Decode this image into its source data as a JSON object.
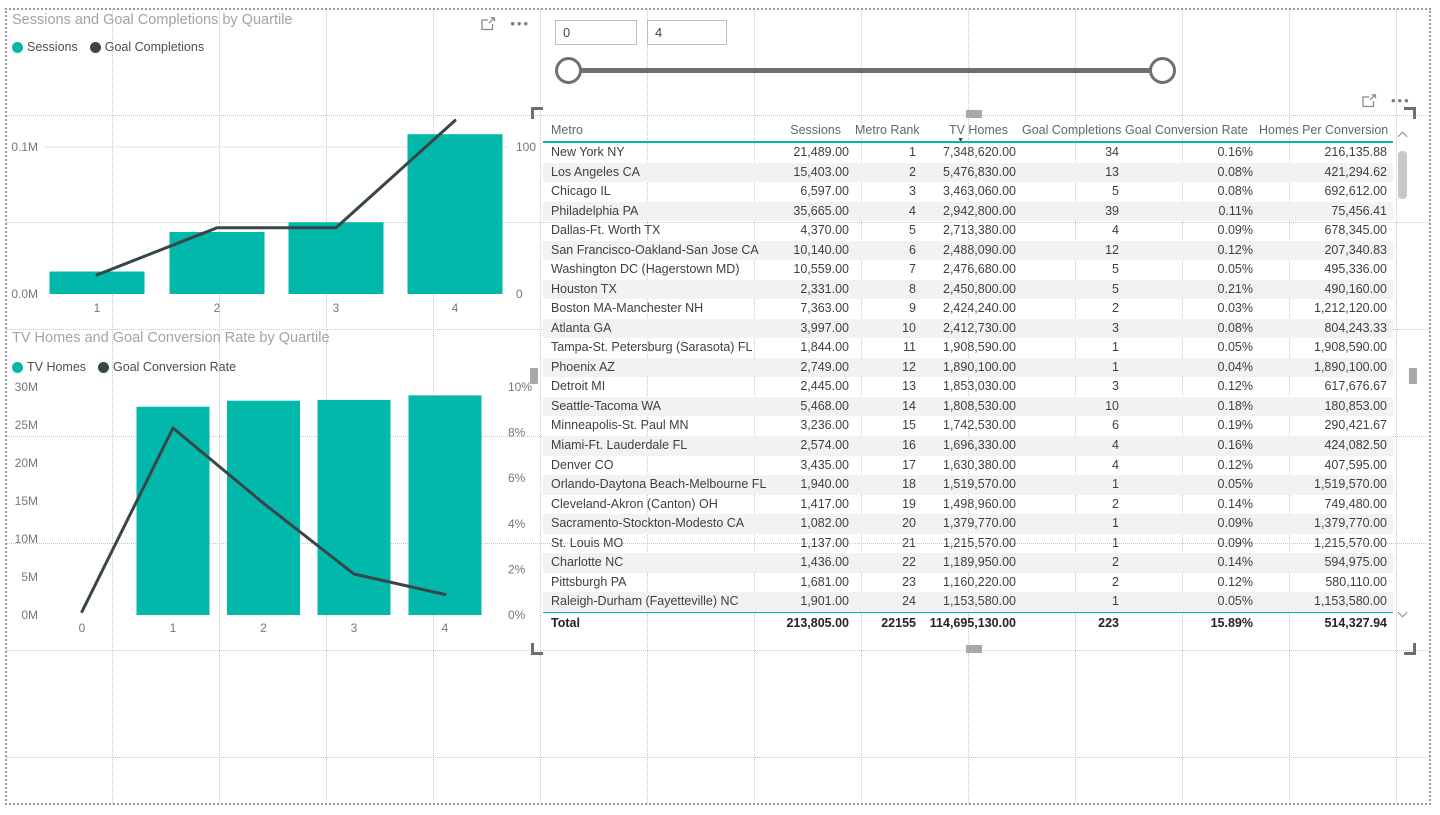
{
  "colors": {
    "teal": "#01B8AA",
    "dark": "#374649"
  },
  "icons": {
    "ellipsis": "•••"
  },
  "charts": [
    {
      "title": "Sessions and Goal Completions by Quartile",
      "legend": [
        {
          "label": "Sessions",
          "color": "#01B8AA"
        },
        {
          "label": "Goal Completions",
          "color": "#374649"
        }
      ],
      "chart_data": {
        "type": "combo-bar-line",
        "categories": [
          "1",
          "2",
          "3",
          "4"
        ],
        "series": [
          {
            "name": "Sessions",
            "type": "bar",
            "axis": "left",
            "values": [
              15300,
              42200,
              48800,
              108700
            ]
          },
          {
            "name": "Goal Completions",
            "type": "line",
            "axis": "right",
            "values": [
              13,
              45,
              45,
              118
            ]
          }
        ],
        "left_axis": {
          "ticks": [
            {
              "label": "0.0M",
              "value": 0
            },
            {
              "label": "0.1M",
              "value": 100000
            }
          ]
        },
        "right_axis": {
          "ticks": [
            {
              "label": "0",
              "value": 0
            },
            {
              "label": "100",
              "value": 100
            }
          ]
        },
        "gridline_values_left": [
          100000
        ]
      }
    },
    {
      "title": "TV Homes and Goal Conversion Rate by Quartile",
      "legend": [
        {
          "label": "TV Homes",
          "color": "#01B8AA"
        },
        {
          "label": "Goal Conversion Rate",
          "color": "#374649"
        }
      ],
      "chart_data": {
        "type": "combo-bar-line",
        "categories": [
          "0",
          "1",
          "2",
          "3",
          "4"
        ],
        "series": [
          {
            "name": "TV Homes",
            "type": "bar",
            "axis": "left",
            "values": [
              0,
              27400000,
              28200000,
              28300000,
              28900000
            ]
          },
          {
            "name": "Goal Conversion Rate",
            "type": "line",
            "axis": "right",
            "values": [
              0.15,
              8.2,
              4.9,
              1.8,
              0.9
            ]
          }
        ],
        "left_axis": {
          "ticks": [
            {
              "label": "0M",
              "value": 0
            },
            {
              "label": "5M",
              "value": 5000000
            },
            {
              "label": "10M",
              "value": 10000000
            },
            {
              "label": "15M",
              "value": 15000000
            },
            {
              "label": "20M",
              "value": 20000000
            },
            {
              "label": "25M",
              "value": 25000000
            },
            {
              "label": "30M",
              "value": 30000000
            }
          ]
        },
        "right_axis": {
          "ticks": [
            {
              "label": "0%",
              "value": 0
            },
            {
              "label": "2%",
              "value": 2
            },
            {
              "label": "4%",
              "value": 4
            },
            {
              "label": "6%",
              "value": 6
            },
            {
              "label": "8%",
              "value": 8
            },
            {
              "label": "10%",
              "value": 10
            }
          ]
        },
        "gridline_values_left": []
      }
    }
  ],
  "slider": {
    "min_value": "0",
    "max_value": "4"
  },
  "table": {
    "columns": [
      {
        "label": "Metro",
        "align": "left",
        "sorted": false
      },
      {
        "label": "Sessions",
        "align": "right",
        "sorted": false
      },
      {
        "label": "Metro Rank",
        "align": "right",
        "sorted": false
      },
      {
        "label": "TV Homes",
        "align": "right",
        "sorted": true
      },
      {
        "label": "Goal Completions",
        "align": "right",
        "sorted": false
      },
      {
        "label": "Goal Conversion Rate",
        "align": "right",
        "sorted": false
      },
      {
        "label": "Homes Per Conversion",
        "align": "right",
        "sorted": false
      }
    ],
    "rows": [
      [
        "New York NY",
        "21,489.00",
        "1",
        "7,348,620.00",
        "34",
        "0.16%",
        "216,135.88"
      ],
      [
        "Los Angeles CA",
        "15,403.00",
        "2",
        "5,476,830.00",
        "13",
        "0.08%",
        "421,294.62"
      ],
      [
        "Chicago IL",
        "6,597.00",
        "3",
        "3,463,060.00",
        "5",
        "0.08%",
        "692,612.00"
      ],
      [
        "Philadelphia PA",
        "35,665.00",
        "4",
        "2,942,800.00",
        "39",
        "0.11%",
        "75,456.41"
      ],
      [
        "Dallas-Ft. Worth TX",
        "4,370.00",
        "5",
        "2,713,380.00",
        "4",
        "0.09%",
        "678,345.00"
      ],
      [
        "San Francisco-Oakland-San Jose CA",
        "10,140.00",
        "6",
        "2,488,090.00",
        "12",
        "0.12%",
        "207,340.83"
      ],
      [
        "Washington DC (Hagerstown MD)",
        "10,559.00",
        "7",
        "2,476,680.00",
        "5",
        "0.05%",
        "495,336.00"
      ],
      [
        "Houston TX",
        "2,331.00",
        "8",
        "2,450,800.00",
        "5",
        "0.21%",
        "490,160.00"
      ],
      [
        "Boston MA-Manchester NH",
        "7,363.00",
        "9",
        "2,424,240.00",
        "2",
        "0.03%",
        "1,212,120.00"
      ],
      [
        "Atlanta GA",
        "3,997.00",
        "10",
        "2,412,730.00",
        "3",
        "0.08%",
        "804,243.33"
      ],
      [
        "Tampa-St. Petersburg (Sarasota) FL",
        "1,844.00",
        "11",
        "1,908,590.00",
        "1",
        "0.05%",
        "1,908,590.00"
      ],
      [
        "Phoenix AZ",
        "2,749.00",
        "12",
        "1,890,100.00",
        "1",
        "0.04%",
        "1,890,100.00"
      ],
      [
        "Detroit MI",
        "2,445.00",
        "13",
        "1,853,030.00",
        "3",
        "0.12%",
        "617,676.67"
      ],
      [
        "Seattle-Tacoma WA",
        "5,468.00",
        "14",
        "1,808,530.00",
        "10",
        "0.18%",
        "180,853.00"
      ],
      [
        "Minneapolis-St. Paul MN",
        "3,236.00",
        "15",
        "1,742,530.00",
        "6",
        "0.19%",
        "290,421.67"
      ],
      [
        "Miami-Ft. Lauderdale FL",
        "2,574.00",
        "16",
        "1,696,330.00",
        "4",
        "0.16%",
        "424,082.50"
      ],
      [
        "Denver CO",
        "3,435.00",
        "17",
        "1,630,380.00",
        "4",
        "0.12%",
        "407,595.00"
      ],
      [
        "Orlando-Daytona Beach-Melbourne FL",
        "1,940.00",
        "18",
        "1,519,570.00",
        "1",
        "0.05%",
        "1,519,570.00"
      ],
      [
        "Cleveland-Akron (Canton) OH",
        "1,417.00",
        "19",
        "1,498,960.00",
        "2",
        "0.14%",
        "749,480.00"
      ],
      [
        "Sacramento-Stockton-Modesto CA",
        "1,082.00",
        "20",
        "1,379,770.00",
        "1",
        "0.09%",
        "1,379,770.00"
      ],
      [
        "St. Louis MO",
        "1,137.00",
        "21",
        "1,215,570.00",
        "1",
        "0.09%",
        "1,215,570.00"
      ],
      [
        "Charlotte NC",
        "1,436.00",
        "22",
        "1,189,950.00",
        "2",
        "0.14%",
        "594,975.00"
      ],
      [
        "Pittsburgh PA",
        "1,681.00",
        "23",
        "1,160,220.00",
        "2",
        "0.12%",
        "580,110.00"
      ],
      [
        "Raleigh-Durham (Fayetteville) NC",
        "1,901.00",
        "24",
        "1,153,580.00",
        "1",
        "0.05%",
        "1,153,580.00"
      ]
    ],
    "total": [
      "Total",
      "213,805.00",
      "22155",
      "114,695,130.00",
      "223",
      "15.89%",
      "514,327.94"
    ]
  }
}
